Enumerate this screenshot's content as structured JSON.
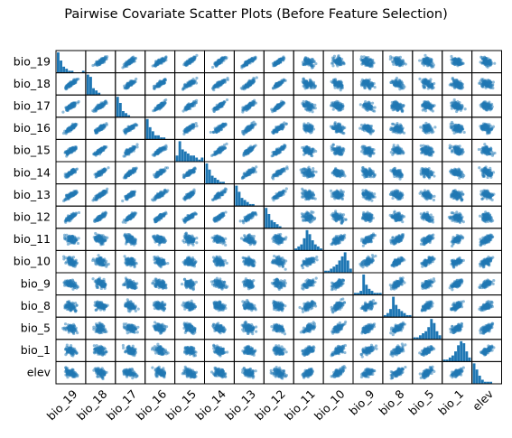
{
  "title": "Pairwise Covariate Scatter Plots (Before Feature Selection)",
  "colors": {
    "points": "#1f77b4",
    "frame": "#000000"
  },
  "chart_data": {
    "type": "scatter",
    "title": "Pairwise Covariate Scatter Plots (Before Feature Selection)",
    "variables": [
      "bio_19",
      "bio_18",
      "bio_17",
      "bio_16",
      "bio_15",
      "bio_14",
      "bio_13",
      "bio_12",
      "bio_11",
      "bio_10",
      "bio_9",
      "bio_8",
      "bio_5",
      "bio_1",
      "elev"
    ],
    "diagonal": "histogram",
    "grid": false,
    "point_alpha": 0.5,
    "histograms": {
      "bio_19": [
        10,
        6,
        3,
        2,
        1,
        1,
        0,
        0,
        0,
        1
      ],
      "bio_18": [
        9,
        8,
        3,
        2,
        1,
        0,
        0,
        0,
        0,
        0
      ],
      "bio_17": [
        10,
        7,
        3,
        2,
        1,
        0,
        0,
        0,
        0,
        0
      ],
      "bio_16": [
        10,
        6,
        4,
        2,
        2,
        1,
        1,
        0,
        0,
        0
      ],
      "bio_15": [
        3,
        10,
        6,
        5,
        4,
        3,
        3,
        2,
        1,
        2
      ],
      "bio_14": [
        10,
        7,
        4,
        3,
        2,
        1,
        1,
        0,
        0,
        0
      ],
      "bio_13": [
        10,
        7,
        4,
        3,
        2,
        1,
        1,
        0,
        0,
        0
      ],
      "bio_12": [
        10,
        7,
        4,
        3,
        2,
        1,
        0,
        0,
        0,
        0
      ],
      "bio_11": [
        1,
        2,
        3,
        6,
        10,
        8,
        5,
        3,
        2,
        1
      ],
      "bio_10": [
        1,
        1,
        2,
        3,
        4,
        6,
        8,
        10,
        6,
        2
      ],
      "bio_9": [
        1,
        1,
        2,
        10,
        5,
        3,
        2,
        1,
        1,
        1
      ],
      "bio_8": [
        1,
        2,
        4,
        10,
        6,
        4,
        3,
        2,
        1,
        1
      ],
      "bio_5": [
        1,
        1,
        2,
        3,
        4,
        6,
        10,
        8,
        4,
        2
      ],
      "bio_1": [
        1,
        1,
        2,
        3,
        5,
        8,
        10,
        9,
        5,
        2
      ],
      "elev": [
        10,
        7,
        4,
        2,
        1,
        1,
        1,
        0,
        0,
        0
      ]
    }
  }
}
